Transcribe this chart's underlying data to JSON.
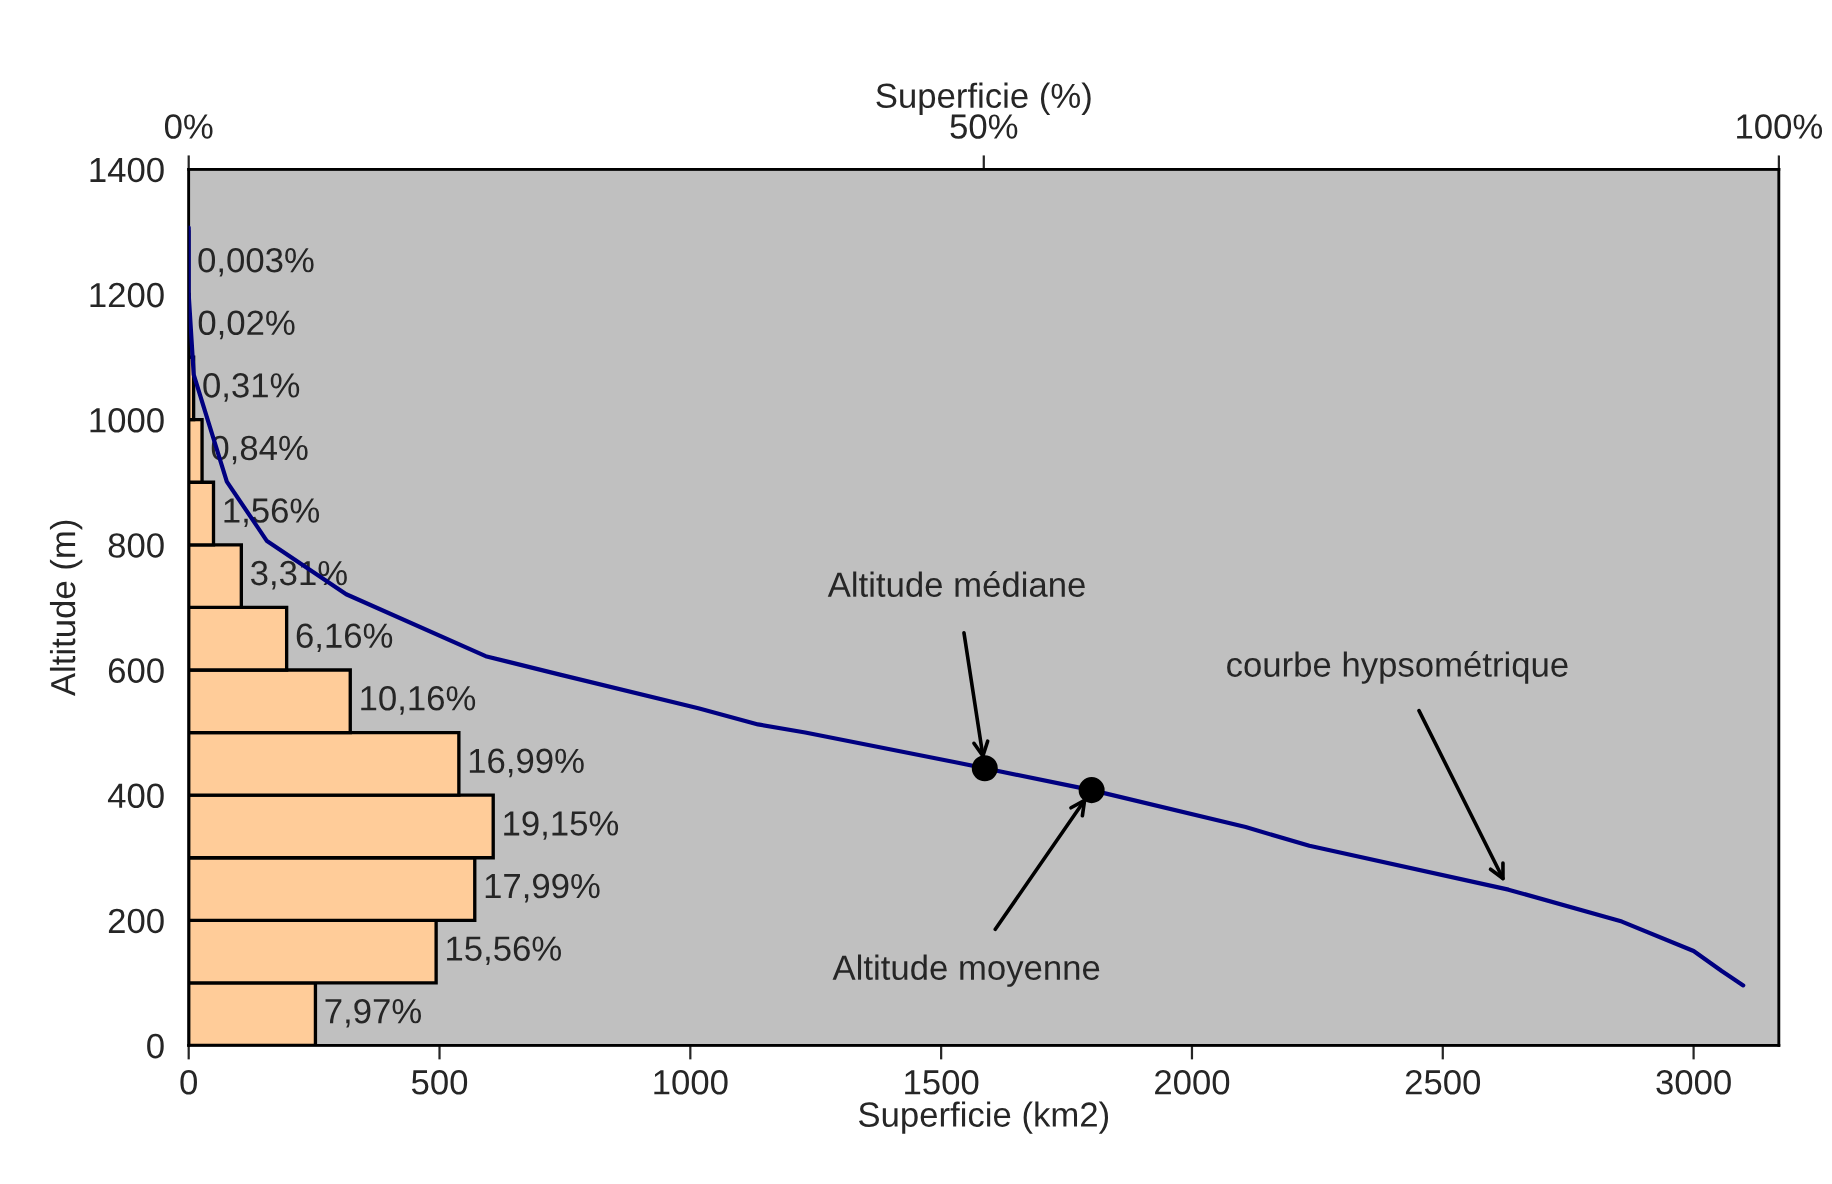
{
  "chart_data": {
    "type": "bar",
    "orientation": "horizontal",
    "xlabel": "Superficie (km2)",
    "ylabel": "Altitude (m)",
    "x2label": "Superficie (%)",
    "xlim": [
      0,
      3170
    ],
    "xticks": [
      0,
      500,
      1000,
      1500,
      2000,
      2500,
      3000
    ],
    "ylim": [
      0,
      1400
    ],
    "yticks": [
      0,
      200,
      400,
      600,
      800,
      1000,
      1200,
      1400
    ],
    "x2lim": [
      0,
      100
    ],
    "x2ticks": [
      {
        "value": 0,
        "label": "0%"
      },
      {
        "value": 50,
        "label": "50%"
      },
      {
        "value": 100,
        "label": "100%"
      }
    ],
    "grid": false,
    "legend": false,
    "series": [
      {
        "axis": "x2",
        "color": "#ffcc99",
        "x": [
          50,
          150,
          250,
          350,
          450,
          550,
          650,
          750,
          850,
          950,
          1050,
          1150,
          1250
        ],
        "values": [
          7.97,
          15.56,
          17.99,
          19.15,
          16.99,
          10.16,
          6.16,
          3.31,
          1.56,
          0.84,
          0.31,
          0.02,
          0.003
        ],
        "value_labels": [
          "7,97%",
          "15,56%",
          "17,99%",
          "19,15%",
          "16,99%",
          "10,16%",
          "6,16%",
          "3,31%",
          "1,56%",
          "0,84%",
          "0,31%",
          "0,02%",
          "0,003%"
        ]
      },
      {
        "type": "line",
        "color": "#000080",
        "marker": "none",
        "line_style": "solid",
        "x": [
          1307,
          1200,
          1072,
          901,
          806,
          721,
          622,
          593,
          539,
          513,
          500,
          453,
          443,
          408,
          349,
          319,
          249,
          198,
          151,
          119,
          96
        ],
        "values": [
          0,
          0,
          10,
          76,
          156,
          314,
          592,
          738,
          1016,
          1135,
          1229,
          1526,
          1587,
          1800,
          2107,
          2234,
          2631,
          2857,
          3000,
          3056,
          3099
        ]
      },
      {
        "type": "scatter",
        "color": "#000000",
        "marker": "circle",
        "x": [
          443,
          408
        ],
        "values": [
          1587,
          1800
        ]
      }
    ],
    "annotations": [
      {
        "text": "Altitude médiane",
        "x": 1587,
        "y": 443
      },
      {
        "text": "Altitude moyenne",
        "x": 1800,
        "y": 408
      },
      {
        "text": "courbe hypsométrique",
        "x": 2631,
        "y": 249
      }
    ]
  }
}
